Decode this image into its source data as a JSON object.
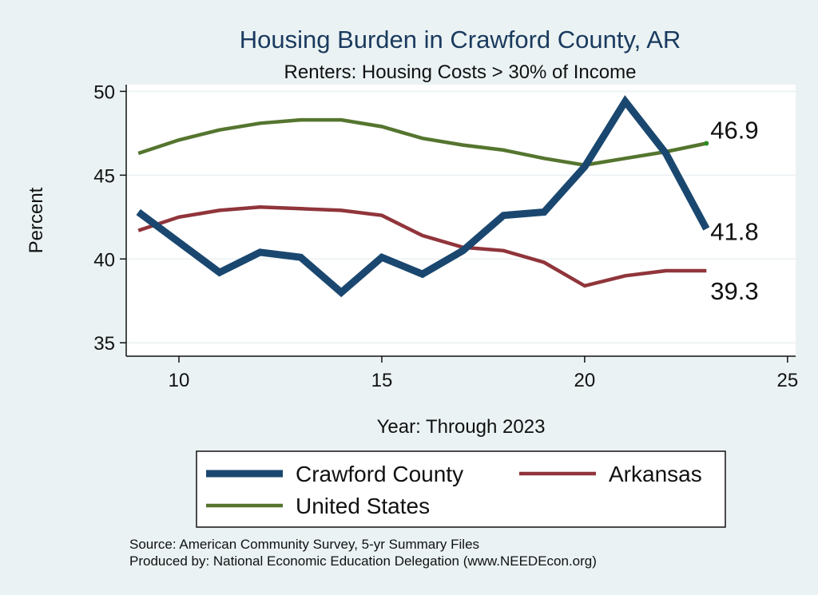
{
  "chart_data": {
    "type": "line",
    "title": "Housing Burden in Crawford County, AR",
    "subtitle": "Renters: Housing Costs > 30% of Income",
    "xlabel": "Year: Through 2023",
    "ylabel": "Percent",
    "xlim": [
      8.7,
      25.2
    ],
    "ylim": [
      34.2,
      50.4
    ],
    "xticks": [
      10,
      15,
      20,
      25
    ],
    "yticks": [
      35,
      40,
      45,
      50
    ],
    "grid": true,
    "legend_position": "bottom",
    "series": [
      {
        "name": "Crawford County",
        "color": "#1a476f",
        "x": [
          9,
          10,
          11,
          12,
          13,
          14,
          15,
          16,
          17,
          18,
          19,
          20,
          21,
          22,
          23
        ],
        "y": [
          42.8,
          41.0,
          39.2,
          40.4,
          40.1,
          38.0,
          40.1,
          39.1,
          40.5,
          42.6,
          42.8,
          45.5,
          49.4,
          46.3,
          41.8
        ]
      },
      {
        "name": "Arkansas",
        "color": "#90353b",
        "x": [
          9,
          10,
          11,
          12,
          13,
          14,
          15,
          16,
          17,
          18,
          19,
          20,
          21,
          22,
          23
        ],
        "y": [
          41.7,
          42.5,
          42.9,
          43.1,
          43.0,
          42.9,
          42.6,
          41.4,
          40.7,
          40.5,
          39.8,
          38.4,
          39.0,
          39.3,
          39.3
        ]
      },
      {
        "name": "United States",
        "color": "#55752f",
        "x": [
          9,
          10,
          11,
          12,
          13,
          14,
          15,
          16,
          17,
          18,
          19,
          20,
          21,
          22,
          23
        ],
        "y": [
          46.3,
          47.1,
          47.7,
          48.1,
          48.3,
          48.3,
          47.9,
          47.2,
          46.8,
          46.5,
          46.0,
          45.6,
          46.0,
          46.4,
          46.9
        ]
      }
    ],
    "end_labels": [
      {
        "series": "United States",
        "text": "46.9"
      },
      {
        "series": "Crawford County",
        "text": "41.8"
      },
      {
        "series": "Arkansas",
        "text": "39.3"
      }
    ]
  },
  "notes": {
    "source": "Source: American Community Survey, 5-yr Summary Files",
    "produced": "Produced by: National Economic Education Delegation (www.NEEDEcon.org)"
  }
}
